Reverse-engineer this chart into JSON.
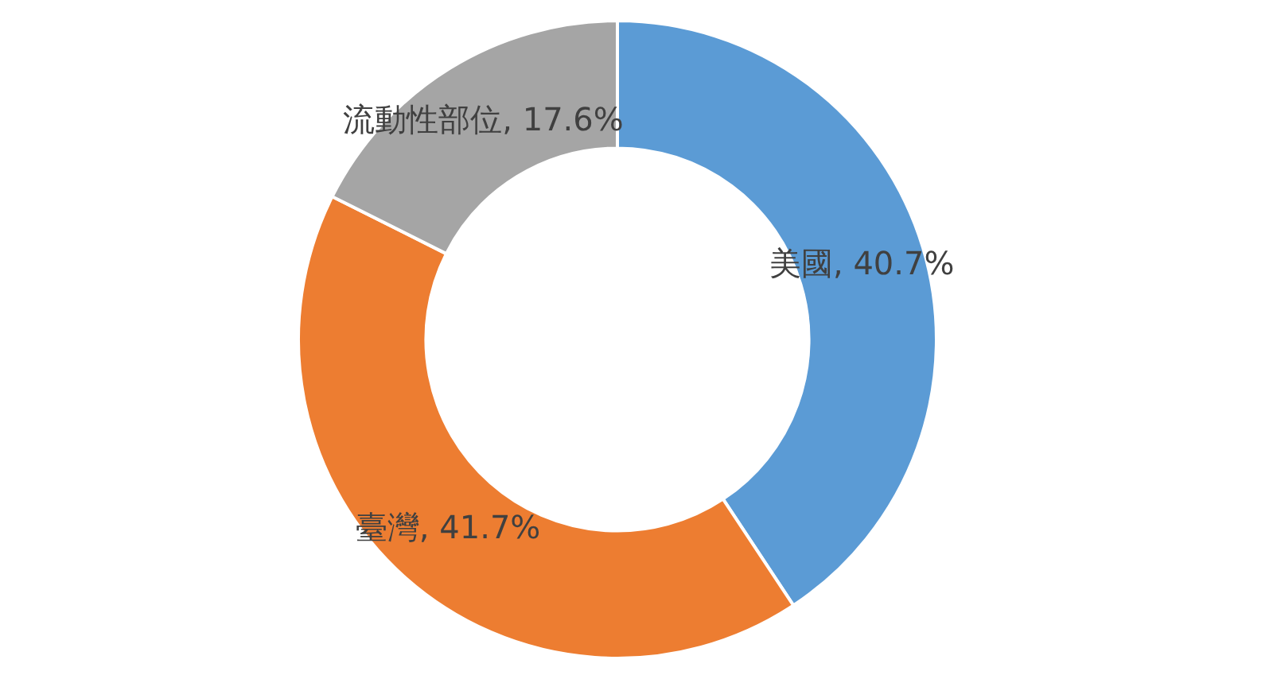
{
  "chart_data": {
    "type": "donut",
    "categories": [
      "美國",
      "臺灣",
      "流動性部位"
    ],
    "values": [
      40.7,
      41.7,
      17.6
    ],
    "colors": [
      "#5b9bd5",
      "#ed7d31",
      "#a5a5a5"
    ],
    "value_labels": [
      "40.7%",
      "41.7%",
      "17.6%"
    ],
    "legend": false
  }
}
